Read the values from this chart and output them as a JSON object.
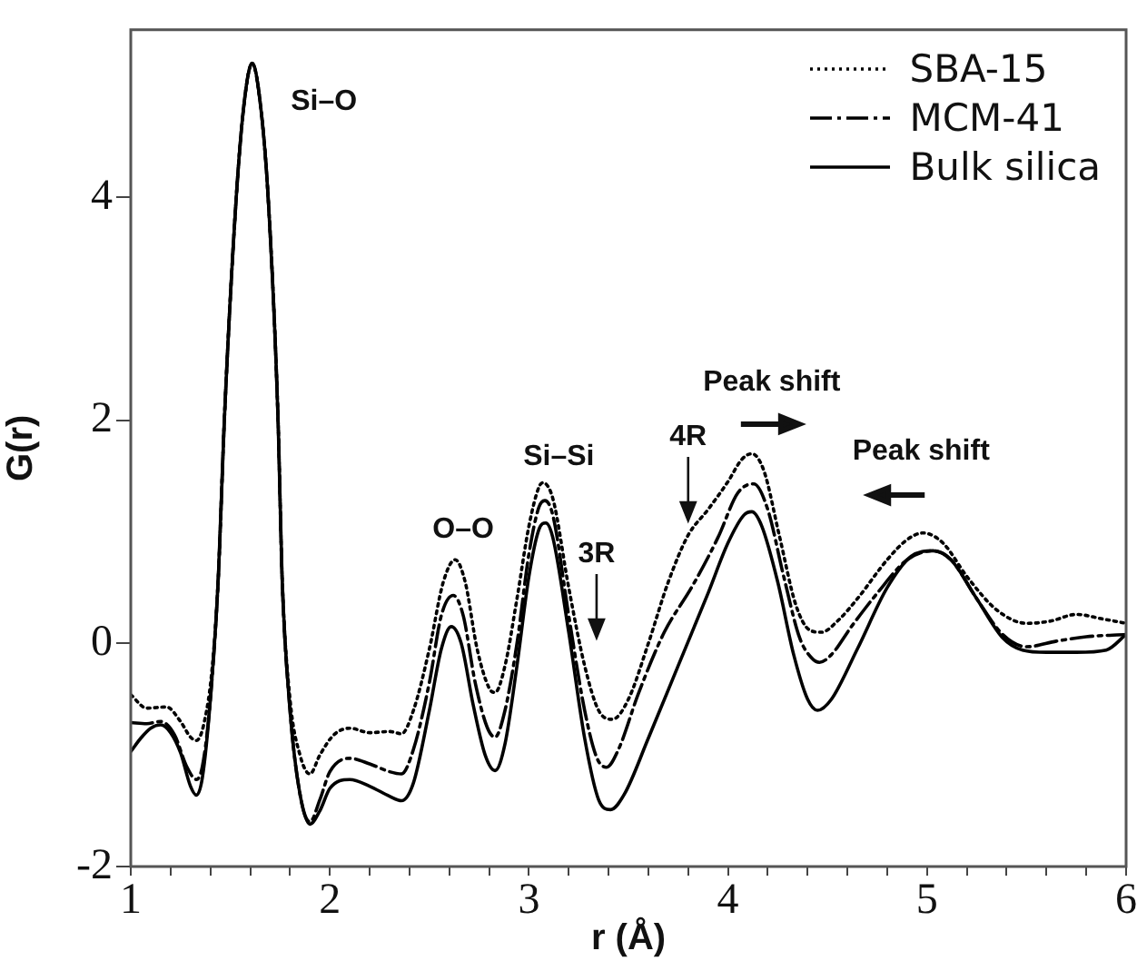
{
  "chart_data": {
    "type": "line",
    "xlabel": "r (Å)",
    "ylabel": "G(r)",
    "xlim": [
      1,
      6
    ],
    "ylim": [
      -2,
      5.5
    ],
    "xticks": [
      1,
      {
        "value": 1.2,
        "label": null
      },
      {
        "value": 1.4,
        "label": null
      },
      {
        "value": 1.6,
        "label": null
      },
      {
        "value": 1.8,
        "label": null
      },
      2,
      {
        "value": 2.2,
        "label": null
      },
      {
        "value": 2.4,
        "label": null
      },
      {
        "value": 2.6,
        "label": null
      },
      {
        "value": 2.8,
        "label": null
      },
      3,
      {
        "value": 3.2,
        "label": null
      },
      {
        "value": 3.4,
        "label": null
      },
      {
        "value": 3.6,
        "label": null
      },
      {
        "value": 3.8,
        "label": null
      },
      4,
      {
        "value": 4.2,
        "label": null
      },
      {
        "value": 4.4,
        "label": null
      },
      {
        "value": 4.6,
        "label": null
      },
      {
        "value": 4.8,
        "label": null
      },
      5,
      {
        "value": 5.2,
        "label": null
      },
      {
        "value": 5.4,
        "label": null
      },
      {
        "value": 5.6,
        "label": null
      },
      {
        "value": 5.8,
        "label": null
      },
      6
    ],
    "yticks": [
      -2,
      0,
      2,
      4
    ],
    "grid": false,
    "legend": "top right",
    "marker": "none",
    "series": [
      {
        "name": "SBA-15",
        "color": "#000000",
        "line_style": "dotted",
        "x": [
          1.0,
          1.08,
          1.18,
          1.25,
          1.3,
          1.33,
          1.37,
          1.41,
          1.44,
          1.47,
          1.53,
          1.57,
          1.61,
          1.65,
          1.69,
          1.74,
          1.76,
          1.8,
          1.85,
          1.9,
          1.95,
          2.02,
          2.1,
          2.2,
          2.3,
          2.36,
          2.42,
          2.5,
          2.57,
          2.63,
          2.68,
          2.74,
          2.8,
          2.83,
          2.88,
          2.94,
          3.0,
          3.05,
          3.07,
          3.12,
          3.2,
          3.28,
          3.35,
          3.42,
          3.5,
          3.6,
          3.7,
          3.8,
          3.9,
          4.0,
          4.07,
          4.12,
          4.18,
          4.26,
          4.34,
          4.41,
          4.47,
          4.55,
          4.65,
          4.8,
          4.9,
          4.98,
          5.08,
          5.2,
          5.35,
          5.5,
          5.62,
          5.75,
          5.88,
          6.0
        ],
        "values": [
          -0.46,
          -0.58,
          -0.57,
          -0.7,
          -0.84,
          -0.87,
          -0.7,
          -0.2,
          0.6,
          2.0,
          4.0,
          4.85,
          5.2,
          4.85,
          4.0,
          2.0,
          0.6,
          -0.5,
          -1.0,
          -1.17,
          -1.0,
          -0.82,
          -0.76,
          -0.8,
          -0.79,
          -0.81,
          -0.6,
          -0.05,
          0.55,
          0.75,
          0.55,
          -0.05,
          -0.4,
          -0.44,
          -0.2,
          0.4,
          1.05,
          1.4,
          1.44,
          1.3,
          0.5,
          -0.2,
          -0.6,
          -0.68,
          -0.5,
          0.0,
          0.55,
          0.97,
          1.2,
          1.45,
          1.65,
          1.7,
          1.55,
          0.95,
          0.35,
          0.12,
          0.1,
          0.2,
          0.4,
          0.75,
          0.93,
          0.99,
          0.9,
          0.6,
          0.3,
          0.18,
          0.2,
          0.26,
          0.22,
          0.18
        ]
      },
      {
        "name": "MCM-41",
        "color": "#000000",
        "line_style": "dashed",
        "x": [
          1.0,
          1.08,
          1.15,
          1.22,
          1.28,
          1.33,
          1.36,
          1.4,
          1.44,
          1.47,
          1.53,
          1.57,
          1.61,
          1.65,
          1.69,
          1.74,
          1.76,
          1.8,
          1.85,
          1.9,
          1.95,
          2.0,
          2.1,
          2.2,
          2.3,
          2.36,
          2.42,
          2.5,
          2.56,
          2.62,
          2.67,
          2.73,
          2.79,
          2.83,
          2.88,
          2.94,
          3.0,
          3.05,
          3.08,
          3.12,
          3.2,
          3.28,
          3.34,
          3.39,
          3.45,
          3.55,
          3.68,
          3.82,
          3.95,
          4.05,
          4.13,
          4.2,
          4.28,
          4.36,
          4.42,
          4.46,
          4.52,
          4.62,
          4.75,
          4.9,
          5.03,
          5.12,
          5.25,
          5.38,
          5.5,
          5.65,
          5.8,
          6.0
        ],
        "values": [
          -0.71,
          -0.72,
          -0.7,
          -0.82,
          -1.1,
          -1.22,
          -1.1,
          -0.5,
          0.6,
          2.0,
          4.0,
          4.85,
          5.2,
          4.85,
          4.0,
          2.0,
          0.6,
          -0.6,
          -1.35,
          -1.6,
          -1.4,
          -1.15,
          -1.03,
          -1.08,
          -1.15,
          -1.17,
          -0.95,
          -0.35,
          0.25,
          0.43,
          0.25,
          -0.35,
          -0.75,
          -0.84,
          -0.6,
          0.0,
          0.8,
          1.22,
          1.28,
          1.15,
          0.25,
          -0.6,
          -1.02,
          -1.11,
          -0.95,
          -0.45,
          0.1,
          0.51,
          0.95,
          1.35,
          1.43,
          1.2,
          0.6,
          0.05,
          -0.13,
          -0.17,
          -0.1,
          0.15,
          0.45,
          0.75,
          0.83,
          0.75,
          0.4,
          0.08,
          -0.03,
          0.02,
          0.06,
          0.08
        ]
      },
      {
        "name": "Bulk silica",
        "color": "#000000",
        "line_style": "solid",
        "x": [
          1.0,
          1.05,
          1.1,
          1.15,
          1.2,
          1.25,
          1.3,
          1.33,
          1.36,
          1.4,
          1.44,
          1.47,
          1.53,
          1.57,
          1.61,
          1.65,
          1.69,
          1.74,
          1.76,
          1.8,
          1.85,
          1.9,
          1.95,
          2.0,
          2.1,
          2.2,
          2.3,
          2.36,
          2.42,
          2.5,
          2.56,
          2.61,
          2.66,
          2.72,
          2.78,
          2.83,
          2.88,
          2.94,
          3.0,
          3.05,
          3.085,
          3.12,
          3.2,
          3.28,
          3.35,
          3.41,
          3.48,
          3.6,
          3.75,
          3.9,
          4.0,
          4.08,
          4.12,
          4.17,
          4.25,
          4.33,
          4.4,
          4.45,
          4.52,
          4.65,
          4.8,
          4.92,
          5.03,
          5.12,
          5.25,
          5.38,
          5.48,
          5.6,
          5.75,
          5.9,
          6.0
        ],
        "values": [
          -0.97,
          -0.85,
          -0.76,
          -0.73,
          -0.8,
          -0.98,
          -1.28,
          -1.36,
          -1.2,
          -0.5,
          0.6,
          2.0,
          4.0,
          4.85,
          5.2,
          4.85,
          4.0,
          2.0,
          0.6,
          -0.6,
          -1.35,
          -1.62,
          -1.5,
          -1.3,
          -1.22,
          -1.28,
          -1.37,
          -1.41,
          -1.25,
          -0.6,
          -0.05,
          0.15,
          0.0,
          -0.55,
          -1.0,
          -1.14,
          -0.9,
          -0.2,
          0.6,
          1.02,
          1.08,
          0.95,
          0.1,
          -0.85,
          -1.4,
          -1.49,
          -1.35,
          -0.85,
          -0.2,
          0.45,
          0.9,
          1.15,
          1.18,
          1.05,
          0.55,
          -0.1,
          -0.5,
          -0.6,
          -0.5,
          -0.05,
          0.5,
          0.78,
          0.83,
          0.75,
          0.4,
          0.05,
          -0.06,
          -0.08,
          -0.08,
          -0.06,
          0.08
        ]
      }
    ],
    "annotations": [
      "Si–O",
      "O–O",
      "Si–Si",
      "3R",
      "4R",
      "Peak shift",
      "Peak shift"
    ]
  }
}
